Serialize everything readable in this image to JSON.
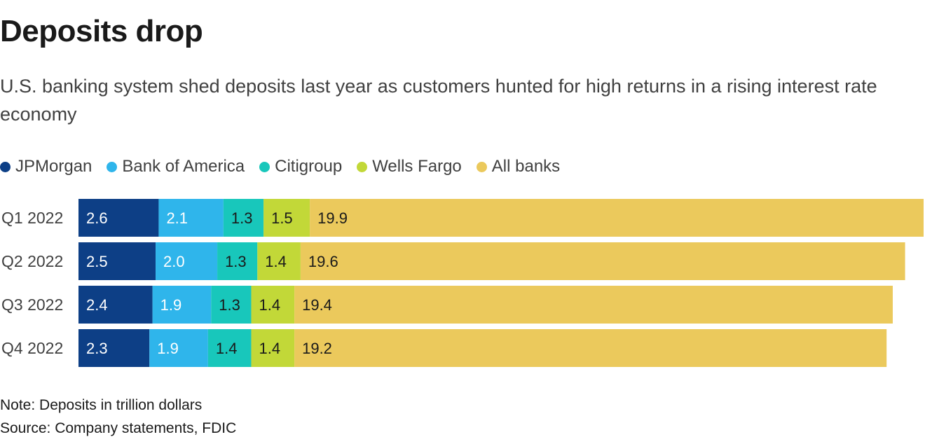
{
  "title": "Deposits drop",
  "subtitle": "U.S. banking system shed deposits last year as customers hunted for high returns in a rising interest rate economy",
  "note": "Note: Deposits in trillion dollars",
  "source": "Source: Company statements, FDIC",
  "colors": {
    "JPMorgan": "#0d3f86",
    "Bank of America": "#2fb5eb",
    "Citigroup": "#18c7bb",
    "Wells Fargo": "#c2d838",
    "All banks": "#ebc95c"
  },
  "chart_data": {
    "type": "bar",
    "orientation": "horizontal",
    "stacked": true,
    "categories": [
      "Q1 2022",
      "Q2 2022",
      "Q3 2022",
      "Q4 2022"
    ],
    "series": [
      {
        "name": "JPMorgan",
        "values": [
          2.6,
          2.5,
          2.4,
          2.3
        ],
        "label_color": "#ffffff"
      },
      {
        "name": "Bank of America",
        "values": [
          2.1,
          2.0,
          1.9,
          1.9
        ],
        "label_color": "#ffffff"
      },
      {
        "name": "Citigroup",
        "values": [
          1.3,
          1.3,
          1.3,
          1.4
        ],
        "label_color": "#1a1a1a"
      },
      {
        "name": "Wells Fargo",
        "values": [
          1.5,
          1.4,
          1.4,
          1.4
        ],
        "label_color": "#1a1a1a"
      },
      {
        "name": "All banks",
        "values": [
          19.9,
          19.6,
          19.4,
          19.2
        ],
        "label_color": "#1a1a1a"
      }
    ],
    "legend_position": "top-left",
    "grid": false
  }
}
